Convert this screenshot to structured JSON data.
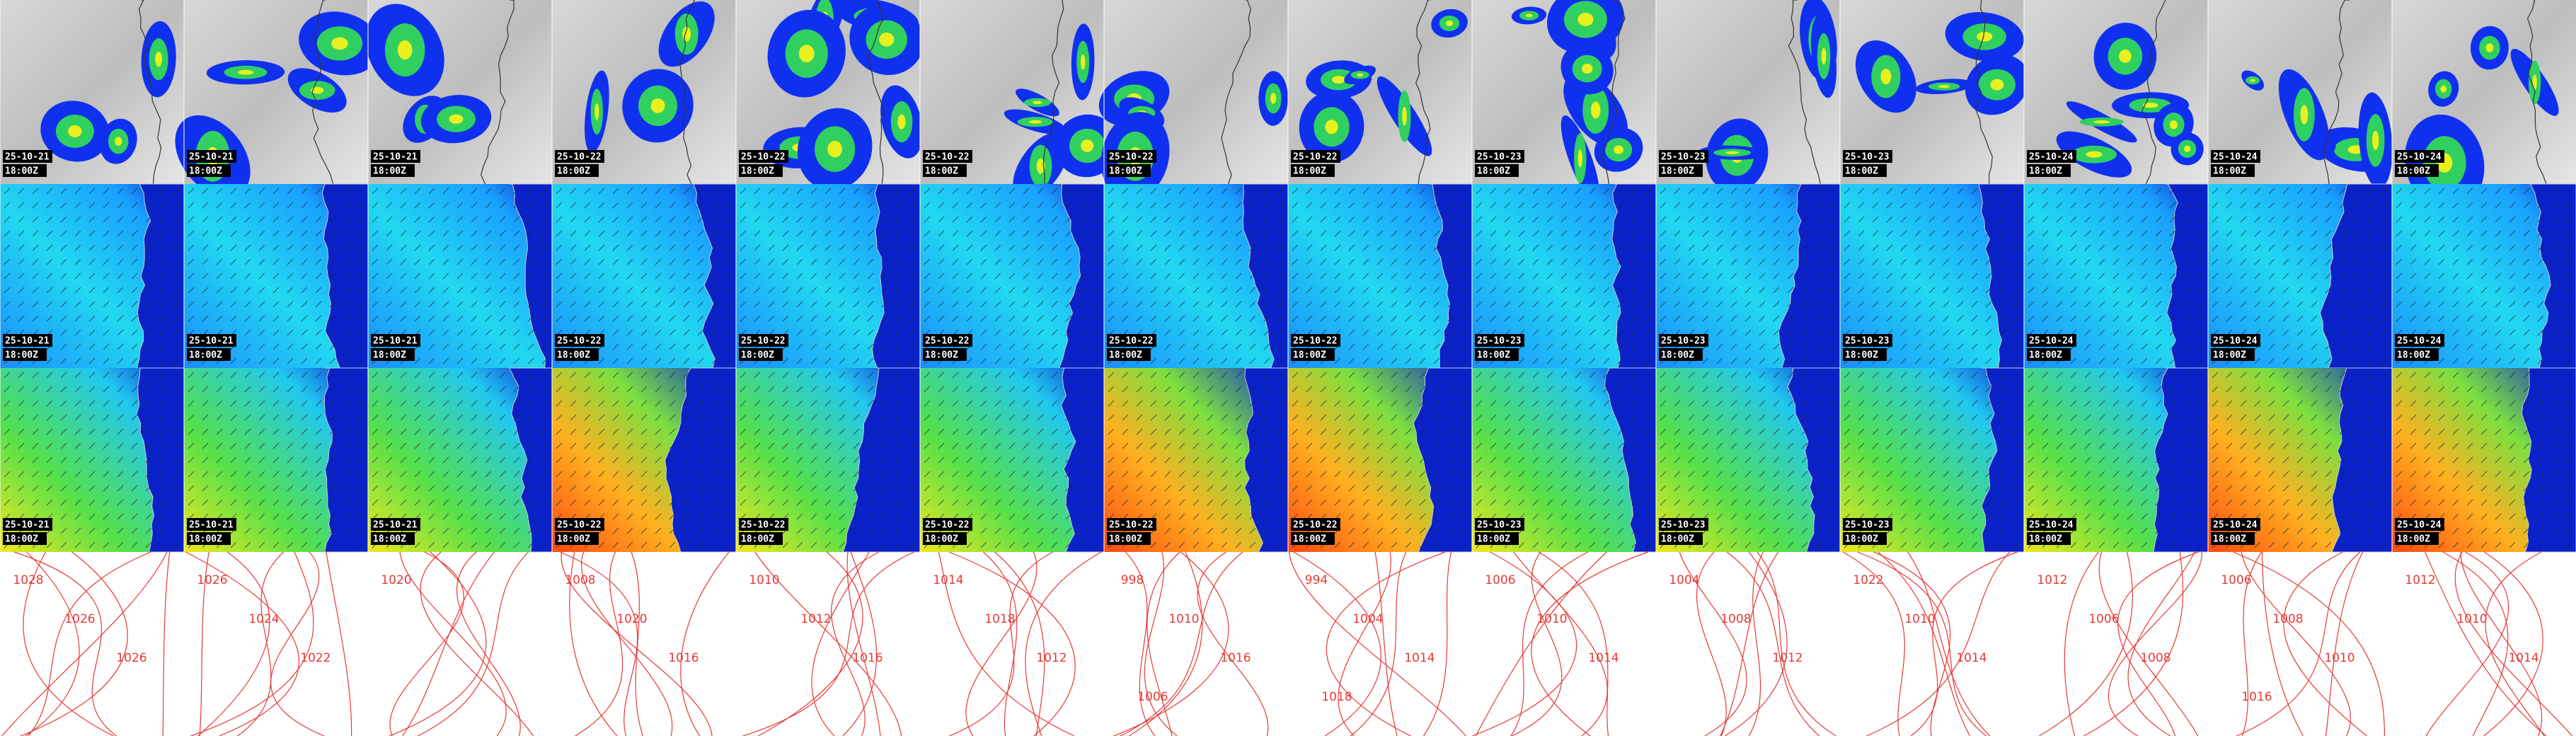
{
  "panels": {
    "stamps": [
      {
        "date": "25-10-21",
        "time": "18:00Z"
      },
      {
        "date": "25-10-21",
        "time": "18:00Z"
      },
      {
        "date": "25-10-21",
        "time": "18:00Z"
      },
      {
        "date": "25-10-22",
        "time": "18:00Z"
      },
      {
        "date": "25-10-22",
        "time": "18:00Z"
      },
      {
        "date": "25-10-22",
        "time": "18:00Z"
      },
      {
        "date": "25-10-22",
        "time": "18:00Z"
      },
      {
        "date": "25-10-22",
        "time": "18:00Z"
      },
      {
        "date": "25-10-23",
        "time": "18:00Z"
      },
      {
        "date": "25-10-23",
        "time": "18:00Z"
      },
      {
        "date": "25-10-23",
        "time": "18:00Z"
      },
      {
        "date": "25-10-24",
        "time": "18:00Z"
      },
      {
        "date": "25-10-24",
        "time": "18:00Z"
      },
      {
        "date": "25-10-24",
        "time": "18:00Z"
      }
    ],
    "isobars": [
      [
        "1028",
        "1026",
        "1026"
      ],
      [
        "1026",
        "1024",
        "1022"
      ],
      [
        "1020"
      ],
      [
        "1008",
        "1020",
        "1016"
      ],
      [
        "1010",
        "1012",
        "1016"
      ],
      [
        "1014",
        "1018",
        "1012"
      ],
      [
        "998",
        "1010",
        "1016",
        "1006"
      ],
      [
        "994",
        "1004",
        "1014",
        "1018"
      ],
      [
        "1006",
        "1010",
        "1014"
      ],
      [
        "1004",
        "1008",
        "1012"
      ],
      [
        "1022",
        "1010",
        "1014"
      ],
      [
        "1012",
        "1006",
        "1008"
      ],
      [
        "1006",
        "1008",
        "1010",
        "1016"
      ],
      [
        "1012",
        "1010",
        "1014"
      ]
    ]
  }
}
